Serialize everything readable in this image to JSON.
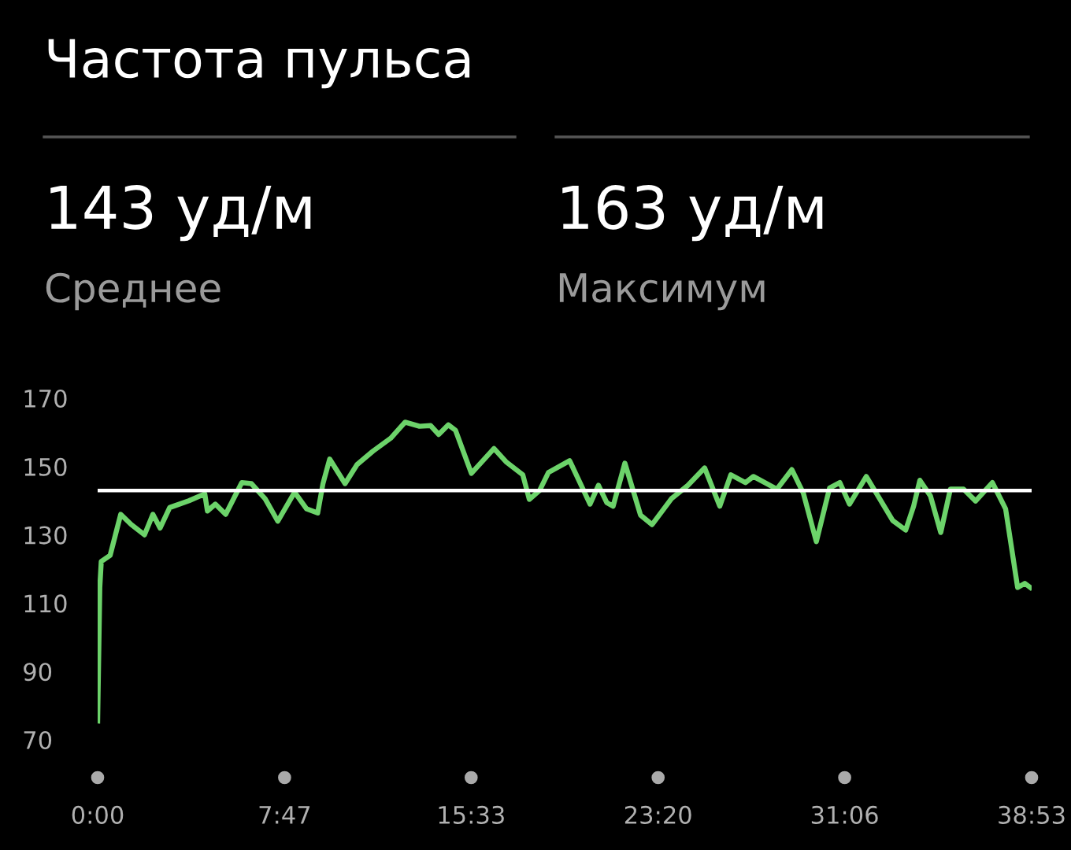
{
  "chart_data": {
    "type": "line",
    "title": "Частота пульса",
    "annotations": [
      "143 уд/м",
      "Среднее",
      "163 уд/м",
      "Максимум"
    ],
    "x": [
      0,
      0.09,
      0.15,
      0.52,
      0.74,
      0.96,
      1.4,
      1.95,
      2.3,
      2.6,
      3.0,
      3.8,
      4.46,
      4.57,
      4.9,
      5.33,
      6.0,
      6.4,
      6.97,
      7.5,
      8.2,
      8.7,
      9.16,
      9.38,
      9.66,
      10.3,
      10.8,
      11.46,
      12.2,
      12.8,
      13.4,
      13.86,
      14.2,
      14.6,
      14.9,
      15.56,
      16.5,
      17.0,
      17.7,
      17.97,
      18.4,
      18.77,
      19.65,
      20.5,
      20.85,
      21.2,
      21.46,
      21.95,
      22.6,
      23.08,
      23.9,
      24.57,
      25.27,
      25.9,
      26.36,
      26.97,
      27.3,
      28.28,
      28.9,
      29.38,
      29.92,
      30.47,
      30.9,
      31.3,
      32.0,
      33.1,
      33.64,
      33.97,
      34.23,
      34.67,
      35.1,
      35.5,
      36.05,
      36.55,
      37.25,
      37.8,
      38.3,
      38.6,
      38.83
    ],
    "series": [
      {
        "color": "#6cd36a",
        "values": [
          75.5,
          114.7,
          122.2,
          124,
          130,
          136,
          133,
          130,
          136,
          132,
          138,
          140,
          142,
          137,
          139,
          136,
          145.3,
          145,
          140.6,
          134,
          142.5,
          137.6,
          136.4,
          145,
          152.2,
          145,
          150.6,
          154.5,
          158.3,
          163,
          161.8,
          162,
          159.4,
          162.2,
          160.6,
          148,
          155.3,
          151.4,
          147.6,
          140.4,
          143,
          148.3,
          151.7,
          139,
          144.5,
          139.4,
          138.4,
          151,
          135.8,
          133,
          140.7,
          144.5,
          149.6,
          138.4,
          147.6,
          145.3,
          147.1,
          143.4,
          149.1,
          142.2,
          128,
          143.7,
          145.3,
          139,
          147.1,
          134.2,
          131.4,
          138.4,
          146,
          141.4,
          130.7,
          143.4,
          143.4,
          139.9,
          145.3,
          137.6,
          114.6,
          115.8,
          114.6
        ]
      }
    ],
    "xlim": [
      0,
      38.883
    ],
    "xticks": [
      {
        "value": 0,
        "label": "0:00"
      },
      {
        "value": 7.783,
        "label": "7:47"
      },
      {
        "value": 15.55,
        "label": "15:33"
      },
      {
        "value": 23.333,
        "label": "23:20"
      },
      {
        "value": 31.1,
        "label": "31:06"
      },
      {
        "value": 38.883,
        "label": "38:53"
      }
    ],
    "ylim": [
      70,
      170
    ],
    "yticks": [
      70,
      90,
      110,
      130,
      150,
      170
    ],
    "ref_lines": [
      {
        "axis": "y",
        "value": 143,
        "color": "#ffffff"
      }
    ],
    "grid": false,
    "legend": false
  }
}
